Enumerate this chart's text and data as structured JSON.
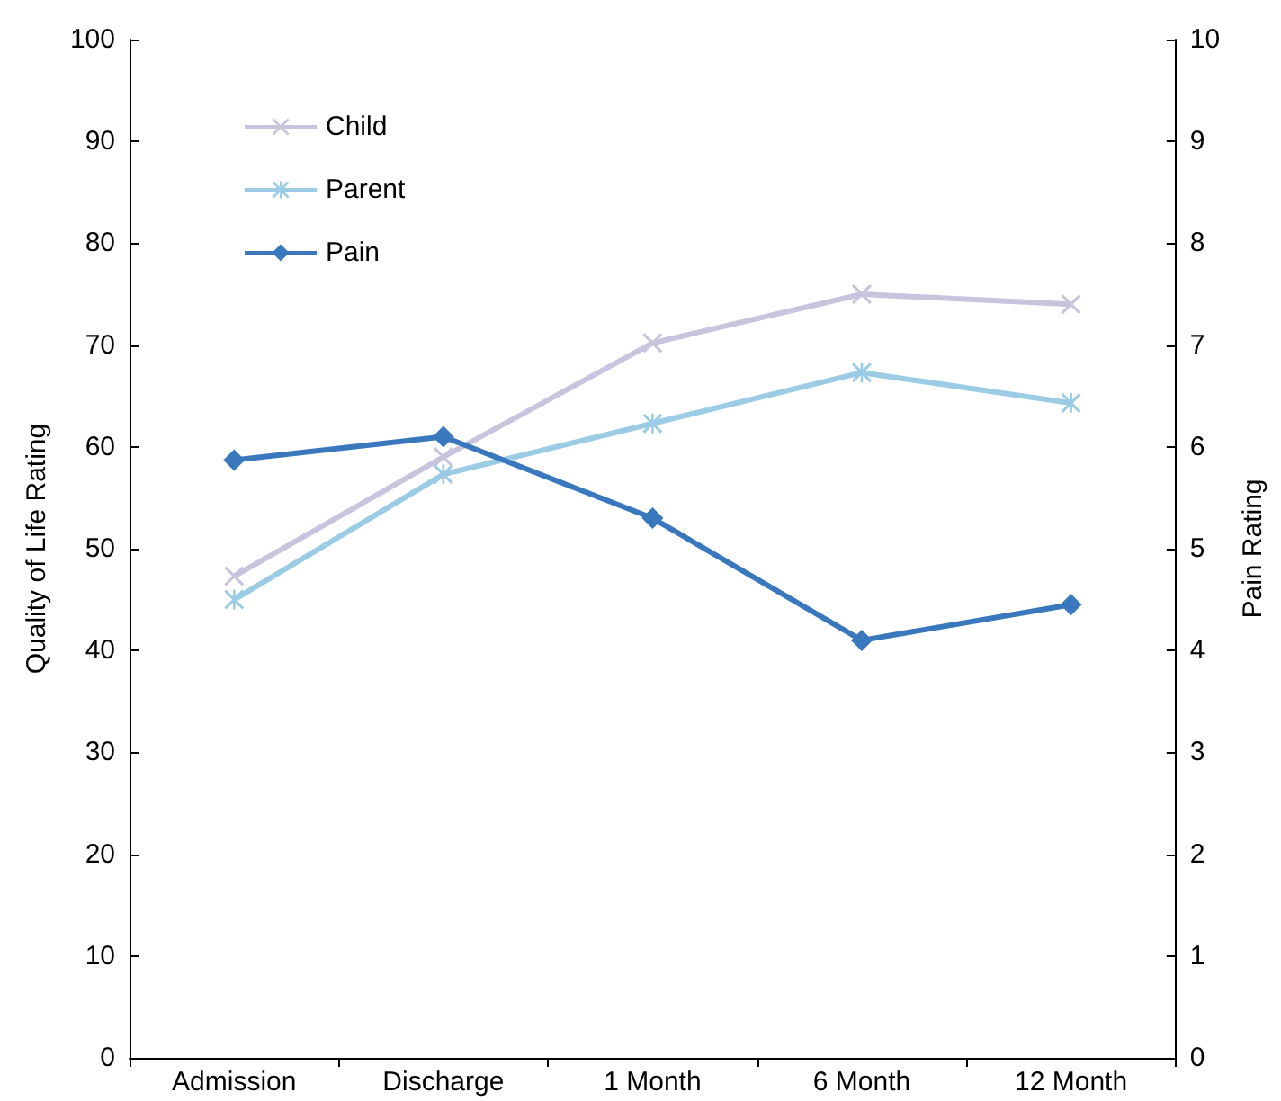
{
  "chart_data": {
    "type": "line",
    "ylabel": "Quality of Life Rating",
    "y2label": "Pain Rating",
    "categories": [
      "Admission",
      "Discharge",
      "1 Month",
      "6 Month",
      "12 Month"
    ],
    "series": [
      {
        "name": "Child",
        "color": "#c9c3dd",
        "marker": "cross",
        "values": [
          47.3,
          59,
          70.2,
          75,
          74
        ]
      },
      {
        "name": "Parent",
        "color": "#9ccbe6",
        "marker": "star",
        "values": [
          45,
          57.3,
          62.3,
          67.3,
          64.3
        ]
      },
      {
        "name": "Pain",
        "color": "#3a78bd",
        "marker": "diamond",
        "axis": "y2",
        "values": [
          5.87,
          6.1,
          5.3,
          4.1,
          4.45
        ]
      }
    ],
    "ylim": [
      0,
      100
    ],
    "yticks": [
      0,
      10,
      20,
      30,
      40,
      50,
      60,
      70,
      80,
      90,
      100
    ],
    "y2lim": [
      0,
      10
    ],
    "y2ticks": [
      0,
      1,
      2,
      3,
      4,
      5,
      6,
      7,
      8,
      9,
      10
    ],
    "grid": false,
    "legend": "top left",
    "line_style": "solid"
  }
}
